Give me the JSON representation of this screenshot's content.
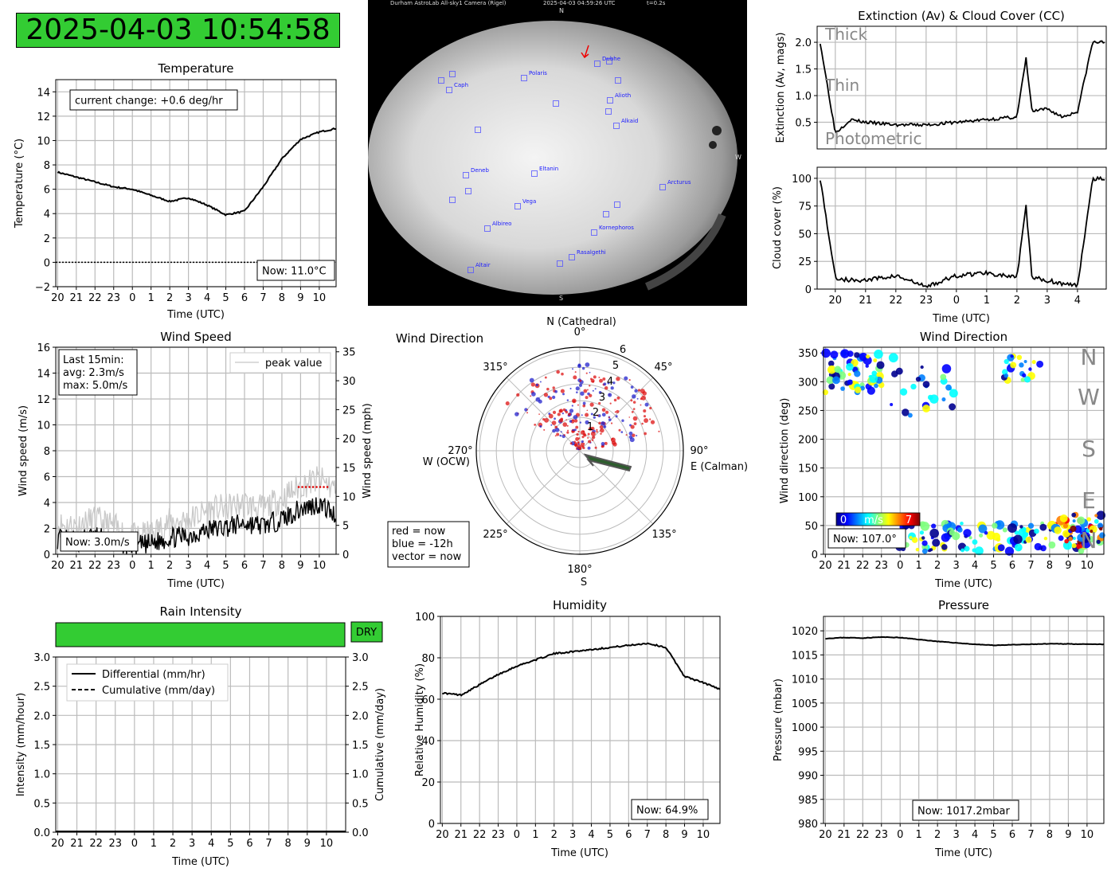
{
  "clock": "2025-04-03 10:54:58",
  "colors": {
    "status_green": "#33cc33",
    "wind_now": "#dd1111",
    "wind_past": "#2222cc",
    "vector": "#2e5d2e",
    "star_marker": "#5555ff"
  },
  "hour_ticks": [
    "20",
    "21",
    "22",
    "23",
    "0",
    "1",
    "2",
    "3",
    "4",
    "5",
    "6",
    "7",
    "8",
    "9",
    "10"
  ],
  "temperature": {
    "title": "Temperature",
    "xlabel": "Time (UTC)",
    "ylabel": "Temperature (°C)",
    "change_label": "current change: +0.6 deg/hr",
    "now_label": "Now: 11.0°C",
    "y_ticks": [
      "14",
      "12",
      "10",
      "8",
      "6",
      "4",
      "2",
      "0",
      "−2"
    ]
  },
  "allsky": {
    "header_left": "Durham AstroLab All-sky1 Camera (Rigel)",
    "header_mid": "2025-04-03 04:59:26 UTC",
    "header_right": "t=0.2s",
    "dir_n": "N",
    "dir_s": "S",
    "dir_w": "W",
    "stars": [
      {
        "name": "Dubhe"
      },
      {
        "name": "Polaris"
      },
      {
        "name": "Caph"
      },
      {
        "name": "Alioth"
      },
      {
        "name": "Alkaid"
      },
      {
        "name": "Deneb"
      },
      {
        "name": "Eltanin"
      },
      {
        "name": "Arcturus"
      },
      {
        "name": "Vega"
      },
      {
        "name": "Albireo"
      },
      {
        "name": "Kornephoros"
      },
      {
        "name": "Rasalgethi"
      },
      {
        "name": "Altair"
      }
    ]
  },
  "extinction": {
    "title": "Extinction (Av) & Cloud Cover (CC)",
    "ylabel": "Extinction (Av, mags)",
    "label_thick": "Thick",
    "label_thin": "Thin",
    "label_photometric": "Photometric",
    "y_ticks": [
      "2.0",
      "1.5",
      "1.0",
      "0.5"
    ]
  },
  "cloud": {
    "ylabel": "Cloud cover (%)",
    "xlabel": "Time (UTC)",
    "y_ticks": [
      "100",
      "75",
      "50",
      "25",
      "0"
    ],
    "x_ticks": [
      "20",
      "21",
      "22",
      "23",
      "0",
      "1",
      "2",
      "3",
      "4"
    ]
  },
  "wind_speed": {
    "title": "Wind Speed",
    "xlabel": "Time (UTC)",
    "ylabel_left": "Wind speed (m/s)",
    "ylabel_right": "Wind speed (mph)",
    "legend_peak": "peak value",
    "stats_line1": "Last 15min:",
    "stats_line2": "avg: 2.3m/s",
    "stats_line3": "max: 5.0m/s",
    "now_label": "Now: 3.0m/s",
    "y_ticks_left": [
      "16",
      "14",
      "12",
      "10",
      "8",
      "6",
      "4",
      "2",
      "0"
    ],
    "y_ticks_right": [
      "35",
      "30",
      "25",
      "20",
      "15",
      "10",
      "5",
      "0"
    ]
  },
  "wind_polar": {
    "title": "Wind Direction",
    "label_n": "N (Cathedral)",
    "label_e": "E (Calman)",
    "label_w": "W (OCW)",
    "label_s": "S",
    "angles": [
      "0°",
      "45°",
      "90°",
      "135°",
      "180°",
      "225°",
      "270°",
      "315°"
    ],
    "radial": [
      "1",
      "2",
      "3",
      "4",
      "5",
      "6"
    ],
    "legend_red": "red = now",
    "legend_blue": "blue = -12h",
    "legend_vector": "vector = now"
  },
  "wind_dir": {
    "title": "Wind Direction",
    "xlabel": "Time (UTC)",
    "ylabel": "Wind direction (deg)",
    "letters": [
      "N",
      "W",
      "S",
      "E",
      "N"
    ],
    "colorbar_min": "0",
    "colorbar_unit": "m/s",
    "colorbar_max": "7",
    "now_label": "Now: 107.0°",
    "y_ticks": [
      "350",
      "300",
      "250",
      "200",
      "150",
      "100",
      "50",
      "0"
    ]
  },
  "rain": {
    "title": "Rain Intensity",
    "status": "DRY",
    "xlabel": "Time (UTC)",
    "ylabel_left": "Intensity (mm/hour)",
    "ylabel_right": "Cumulative (mm/day)",
    "legend_diff": "Differential (mm/hr)",
    "legend_cum": "Cumulative (mm/day)",
    "y_ticks": [
      "3.0",
      "2.5",
      "2.0",
      "1.5",
      "1.0",
      "0.5",
      "0.0"
    ]
  },
  "humidity": {
    "title": "Humidity",
    "xlabel": "Time (UTC)",
    "ylabel": "Relative Humidity (%)",
    "now_label": "Now: 64.9%",
    "y_ticks": [
      "100",
      "80",
      "60",
      "40",
      "20",
      "0"
    ]
  },
  "pressure": {
    "title": "Pressure",
    "xlabel": "Time (UTC)",
    "ylabel": "Pressure (mbar)",
    "now_label": "Now: 1017.2mbar",
    "y_ticks": [
      "1020",
      "1015",
      "1010",
      "1005",
      "1000",
      "995",
      "990",
      "985",
      "980"
    ]
  },
  "chart_data": [
    {
      "type": "line",
      "title": "Temperature",
      "xlabel": "Time (UTC)",
      "ylabel": "Temperature (°C)",
      "ylim": [
        -2,
        15
      ],
      "x_hours": [
        20,
        21,
        22,
        23,
        0,
        1,
        2,
        3,
        4,
        5,
        6,
        7,
        8,
        9,
        10,
        10.9
      ],
      "series": [
        {
          "values": [
            7.4,
            7.0,
            6.6,
            6.2,
            6.0,
            5.5,
            5.0,
            5.3,
            4.7,
            3.9,
            4.2,
            6.2,
            8.5,
            10.1,
            10.7,
            11.0
          ]
        }
      ]
    },
    {
      "type": "line",
      "title": "Extinction (Av) & Cloud Cover (CC)",
      "ylabel": "Extinction (Av, mags)",
      "ylim": [
        0,
        2.3
      ],
      "x_hours": [
        19.5,
        20,
        20.5,
        21,
        22,
        23,
        0,
        1,
        2,
        2.3,
        2.5,
        3,
        3.5,
        4,
        4.5,
        4.9
      ],
      "series": [
        {
          "values": [
            2.0,
            0.3,
            0.55,
            0.5,
            0.45,
            0.45,
            0.5,
            0.55,
            0.6,
            1.7,
            0.7,
            0.75,
            0.6,
            0.7,
            2.0,
            2.0
          ]
        }
      ]
    },
    {
      "type": "line",
      "ylabel": "Cloud cover (%)",
      "xlabel": "Time (UTC)",
      "ylim": [
        0,
        110
      ],
      "x_hours": [
        19.5,
        20,
        20.5,
        21,
        22,
        23,
        0,
        1,
        2,
        2.3,
        2.5,
        3,
        3.5,
        4,
        4.5,
        4.9
      ],
      "series": [
        {
          "values": [
            100,
            10,
            8,
            8,
            12,
            2,
            12,
            15,
            10,
            75,
            10,
            8,
            5,
            3,
            100,
            100
          ]
        }
      ]
    },
    {
      "type": "line",
      "title": "Wind Speed",
      "xlabel": "Time (UTC)",
      "ylabel": "Wind speed (m/s)",
      "ylim": [
        0,
        16
      ],
      "x_hours": [
        20,
        21,
        22,
        23,
        0,
        1,
        2,
        3,
        4,
        5,
        6,
        7,
        8,
        9,
        10,
        10.9
      ],
      "series": [
        {
          "values": [
            1.2,
            1.0,
            1.4,
            1.0,
            0.6,
            0.8,
            1.3,
            1.4,
            1.9,
            2.1,
            2.4,
            2.2,
            2.7,
            3.5,
            3.9,
            3.0
          ]
        },
        {
          "name": "peak value",
          "values": [
            2.3,
            2.2,
            2.7,
            2.1,
            1.3,
            1.6,
            2.5,
            2.6,
            3.4,
            3.6,
            3.9,
            3.5,
            4.3,
            5.3,
            5.8,
            5.0
          ]
        }
      ]
    },
    {
      "type": "scatter",
      "title": "Wind Direction",
      "xlabel": "Time (UTC)",
      "ylabel": "Wind direction (deg)",
      "ylim": [
        0,
        360
      ],
      "x_hours": [
        20,
        20.5,
        21,
        21.5,
        22,
        23,
        0,
        1,
        2,
        3,
        4,
        5,
        6,
        7,
        8,
        9,
        10,
        10.9
      ],
      "series": [
        {
          "values": [
            320,
            330,
            340,
            300,
            330,
            320,
            280,
            320,
            330,
            320,
            30,
            40,
            30,
            20,
            30,
            50,
            60,
            107
          ]
        }
      ]
    },
    {
      "type": "line",
      "title": "Rain Intensity",
      "xlabel": "Time (UTC)",
      "ylabel": "Intensity (mm/hour)",
      "ylim": [
        0,
        3
      ],
      "x_hours": [
        20,
        10.9
      ],
      "series": [
        {
          "name": "Differential (mm/hr)",
          "values": [
            0,
            0
          ]
        },
        {
          "name": "Cumulative (mm/day)",
          "values": [
            0,
            0
          ]
        }
      ]
    },
    {
      "type": "line",
      "title": "Humidity",
      "xlabel": "Time (UTC)",
      "ylabel": "Relative Humidity (%)",
      "ylim": [
        0,
        100
      ],
      "x_hours": [
        20,
        21,
        22,
        23,
        0,
        1,
        2,
        3,
        4,
        5,
        6,
        7,
        8,
        9,
        10,
        10.9
      ],
      "series": [
        {
          "values": [
            63,
            62,
            67,
            72,
            76,
            79,
            82,
            83,
            84,
            85,
            86,
            87,
            85,
            71,
            68,
            64.9
          ]
        }
      ]
    },
    {
      "type": "line",
      "title": "Pressure",
      "xlabel": "Time (UTC)",
      "ylabel": "Pressure (mbar)",
      "ylim": [
        980,
        1023
      ],
      "x_hours": [
        20,
        21,
        22,
        23,
        0,
        1,
        2,
        3,
        4,
        5,
        6,
        7,
        8,
        9,
        10,
        10.9
      ],
      "series": [
        {
          "values": [
            1018.4,
            1018.6,
            1018.5,
            1018.7,
            1018.6,
            1018.2,
            1017.8,
            1017.5,
            1017.2,
            1017.0,
            1017.1,
            1017.2,
            1017.3,
            1017.3,
            1017.2,
            1017.2
          ]
        }
      ]
    }
  ]
}
